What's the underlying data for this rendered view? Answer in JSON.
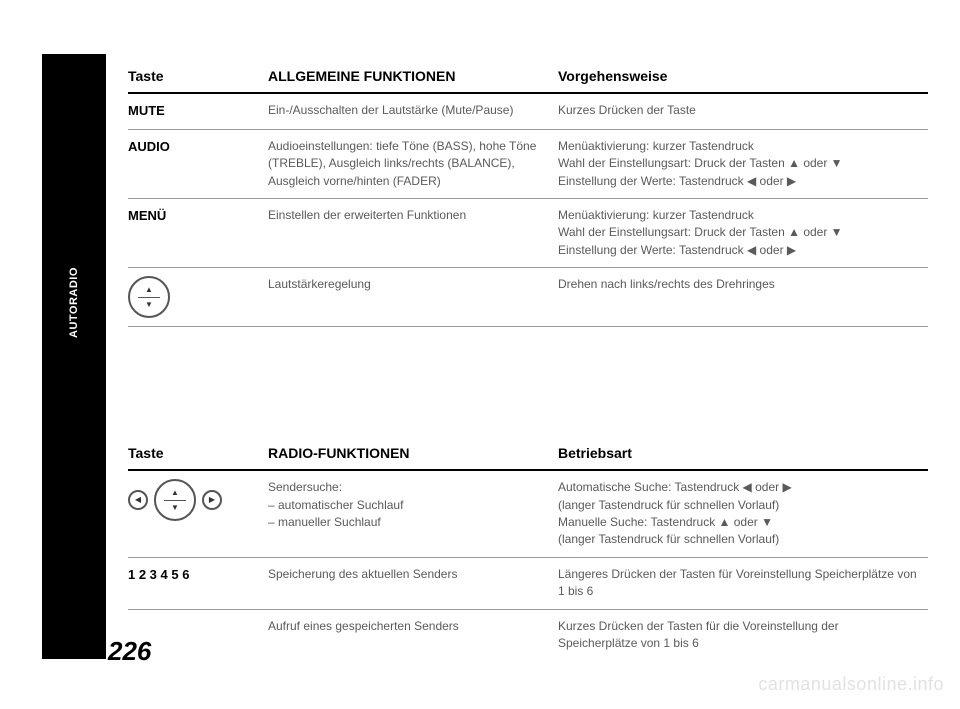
{
  "page": {
    "number": "226",
    "sidebar_label": "AUTORADIO",
    "watermark": "carmanualsonline.info"
  },
  "table1": {
    "headers": {
      "key": "Taste",
      "fn": "ALLGEMEINE FUNKTIONEN",
      "op": "Vorgehensweise"
    },
    "rows": [
      {
        "key": "MUTE",
        "fn": "Ein-/Ausschalten der Lautstärke (Mute/Pause)",
        "op": "Kurzes Drücken der Taste"
      },
      {
        "key": "AUDIO",
        "fn": "Audioeinstellungen: tiefe Töne (BASS), hohe Töne (TREBLE), Ausgleich links/rechts (BALANCE), Ausgleich vorne/hinten (FADER)",
        "op": "Menüaktivierung: kurzer Tastendruck\nWahl der Einstellungsart: Druck der Tasten ▲ oder ▼\nEinstellung der Werte: Tastendruck ◀ oder ▶"
      },
      {
        "key": "MENÜ",
        "fn": "Einstellen der erweiterten Funktionen",
        "op": "Menüaktivierung: kurzer Tastendruck\nWahl der Einstellungsart: Druck der Tasten ▲ oder ▼\nEinstellung der Werte: Tastendruck ◀ oder ▶"
      },
      {
        "icon": "dial",
        "fn": "Lautstärkeregelung",
        "op": "Drehen nach links/rechts des Drehringes"
      }
    ]
  },
  "table2": {
    "headers": {
      "key": "Taste",
      "fn": "RADIO-FUNKTIONEN",
      "op": "Betriebsart"
    },
    "rows": [
      {
        "icon": "dial-lr",
        "fn": "Sendersuche:\n– automatischer Suchlauf\n– manueller Suchlauf",
        "op": "Automatische Suche: Tastendruck ◀ oder ▶\n(langer Tastendruck für schnellen Vorlauf)\nManuelle Suche: Tastendruck ▲ oder ▼\n(langer Tastendruck für schnellen Vorlauf)"
      },
      {
        "key": "1 2 3 4 5 6",
        "fn": "Speicherung des aktuellen Senders",
        "op": "Längeres Drücken der Tasten für Voreinstellung Speicherplätze von 1 bis 6"
      },
      {
        "key": "",
        "fn": "Aufruf eines gespeicherten Senders",
        "op": "Kurzes Drücken der Tasten für die Voreinstellung der Speicherplätze von 1 bis 6"
      }
    ]
  }
}
